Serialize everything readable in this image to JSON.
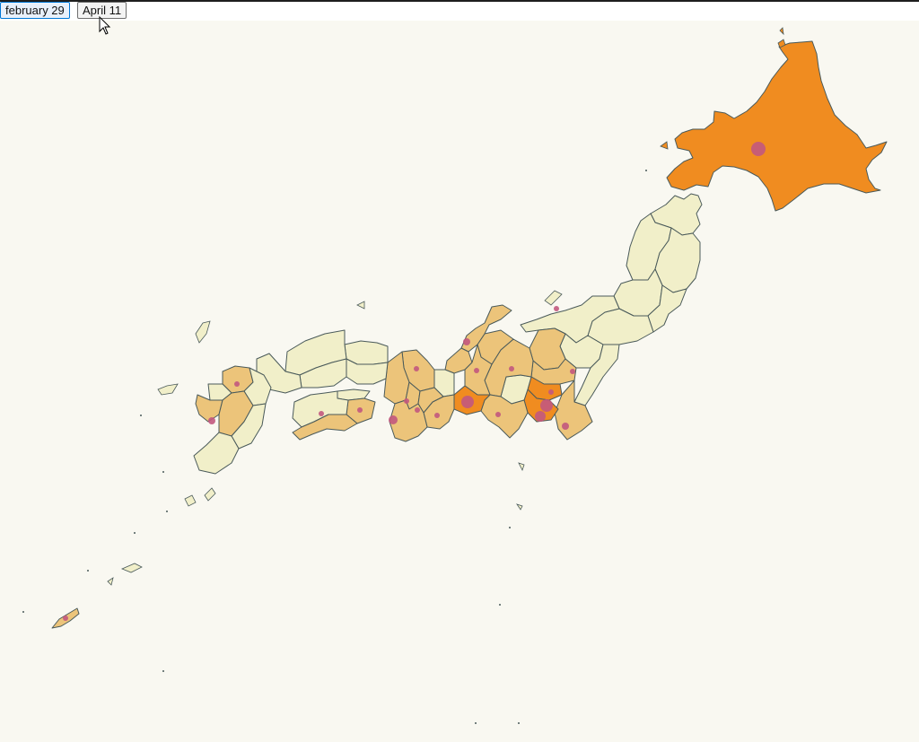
{
  "controls": {
    "date_buttons": [
      "february 29",
      "April 11"
    ]
  },
  "map": {
    "fill_scale": [
      "#f1efc9",
      "#ecc47a",
      "#f08c20"
    ],
    "marker_color": "#c2587e",
    "background": "#f9f8f1"
  }
}
